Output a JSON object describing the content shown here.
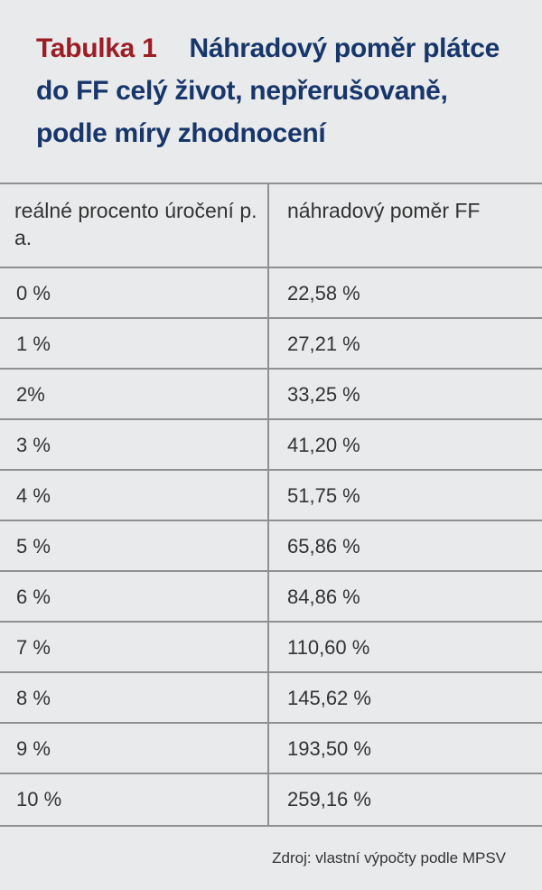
{
  "title": {
    "label": "Tabulka 1",
    "text": "Náhradový poměr plátce do FF celý život, nepřerušovaně, podle míry zhodnocení"
  },
  "table": {
    "headers": [
      "reálné procento úročení p. a.",
      "náhradový poměr FF"
    ],
    "rows": [
      [
        "0 %",
        "22,58 %"
      ],
      [
        "1 %",
        "27,21 %"
      ],
      [
        "2%",
        "33,25 %"
      ],
      [
        "3 %",
        "41,20 %"
      ],
      [
        "4 %",
        "51,75 %"
      ],
      [
        "5 %",
        "65,86 %"
      ],
      [
        "6 %",
        "84,86 %"
      ],
      [
        "7 %",
        "110,60 %"
      ],
      [
        "8 %",
        "145,62 %"
      ],
      [
        "9 %",
        "193,50 %"
      ],
      [
        "10 %",
        "259,16 %"
      ]
    ]
  },
  "source": "Zdroj: vlastní výpočty podle MPSV"
}
